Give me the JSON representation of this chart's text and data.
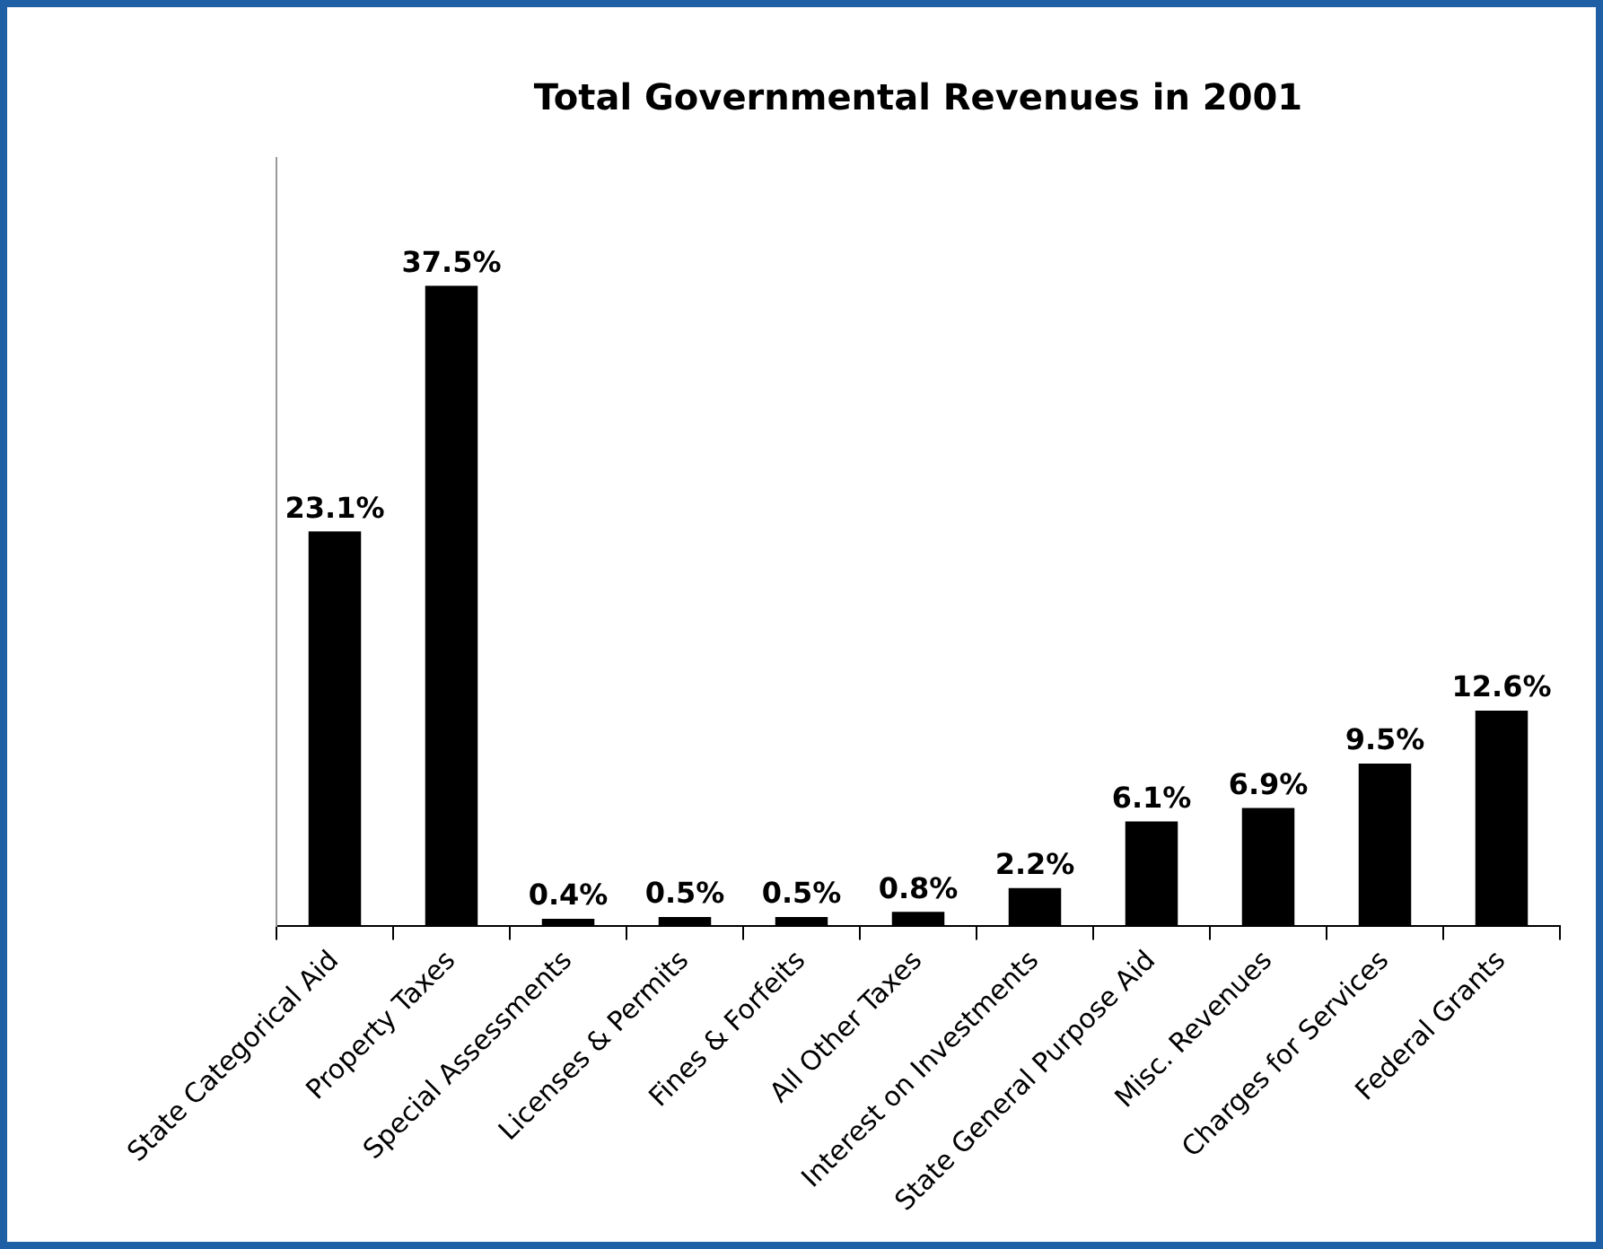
{
  "chart_data": {
    "type": "bar",
    "title": "Total Governmental Revenues in 2001",
    "categories": [
      "State Categorical Aid",
      "Property Taxes",
      "Special Assessments",
      "Licenses & Permits",
      "Fines & Forfeits",
      "All Other Taxes",
      "Interest on Investments",
      "State General Purpose Aid",
      "Misc. Revenues",
      "Charges for Services",
      "Federal Grants"
    ],
    "values": [
      23.1,
      37.5,
      0.4,
      0.5,
      0.5,
      0.8,
      2.2,
      6.1,
      6.9,
      9.5,
      12.6
    ],
    "value_labels": [
      "23.1%",
      "37.5%",
      "0.4%",
      "0.5%",
      "0.5%",
      "0.8%",
      "2.2%",
      "6.1%",
      "6.9%",
      "9.5%",
      "12.6%"
    ],
    "color": "#000000",
    "grid": false,
    "legend": false
  }
}
